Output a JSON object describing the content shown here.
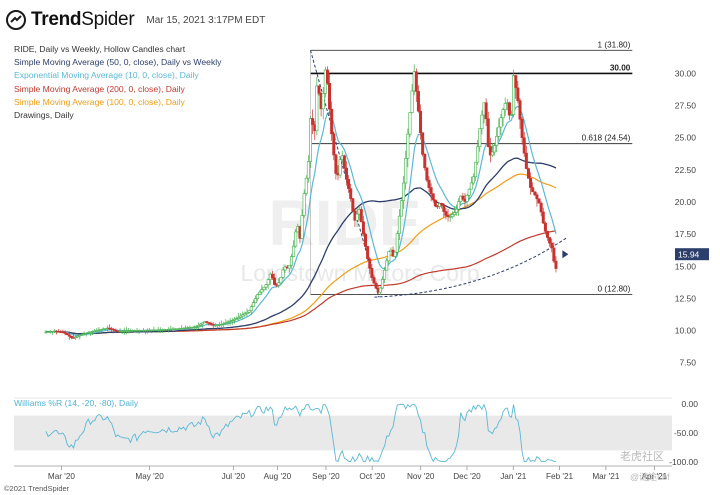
{
  "header": {
    "brand_bold": "Trend",
    "brand_light": "Spider",
    "timestamp": "Mar 15, 2021 3:17PM EDT"
  },
  "legend": {
    "title": "RIDE, Daily vs Weekly, Hollow Candles chart",
    "items": [
      {
        "label": "Simple Moving Average (50, 0, close), Daily vs Weekly",
        "color": "#2c3e6b"
      },
      {
        "label": "Exponential Moving Average (10, 0, close), Daily",
        "color": "#5bb8d4"
      },
      {
        "label": "Simple Moving Average (200, 0, close), Daily",
        "color": "#c0392b"
      },
      {
        "label": "Simple Moving Average (100, 0, close), Daily",
        "color": "#f39c12"
      },
      {
        "label": "Drawings, Daily",
        "color": "#333333"
      }
    ]
  },
  "watermark": {
    "symbol": "RIDE",
    "company": "Lordstown Motors Corp"
  },
  "footer": "©2021 TrendSpider",
  "corner_watermark": {
    "line1": "老虎社区",
    "line2": "@谜途Lbf"
  },
  "chart_data": {
    "type": "candlestick",
    "ticker": "RIDE",
    "price_axis": {
      "ticks": [
        7.5,
        10.0,
        12.5,
        15.0,
        17.5,
        20.0,
        22.5,
        25.0,
        27.5,
        30.0
      ],
      "range": [
        6.0,
        32.6
      ],
      "last_price": 15.94,
      "last_price_label": "15.94"
    },
    "x_axis": {
      "labels": [
        "Mar '20",
        "May '20",
        "Jul '20",
        "Aug '20",
        "Sep '20",
        "Oct '20",
        "Nov '20",
        "Dec '20",
        "Jan '21",
        "Feb '21",
        "Mar '21",
        "Apr '21"
      ]
    },
    "fibonacci": [
      {
        "label": "1 (31.80)",
        "price": 31.8
      },
      {
        "label": "30.00",
        "price": 30.0
      },
      {
        "label": "0.618 (24.54)",
        "price": 24.54
      },
      {
        "label": "0 (12.80)",
        "price": 12.8
      }
    ],
    "close_series": {
      "name": "RIDE close",
      "points": [
        [
          0,
          9.9
        ],
        [
          0.2,
          9.95
        ],
        [
          0.4,
          9.85
        ],
        [
          0.6,
          9.4
        ],
        [
          0.8,
          9.7
        ],
        [
          1.0,
          9.9
        ],
        [
          1.4,
          10.2
        ],
        [
          1.6,
          9.95
        ],
        [
          2.0,
          10.0
        ],
        [
          2.5,
          10.05
        ],
        [
          3.0,
          10.15
        ],
        [
          3.4,
          10.3
        ],
        [
          3.6,
          10.7
        ],
        [
          3.8,
          10.4
        ],
        [
          4.0,
          10.5
        ],
        [
          4.3,
          10.9
        ],
        [
          4.6,
          11.5
        ],
        [
          4.8,
          12.8
        ],
        [
          5.0,
          13.6
        ],
        [
          5.1,
          14.5
        ],
        [
          5.2,
          13.4
        ],
        [
          5.3,
          13.8
        ],
        [
          5.4,
          15.0
        ],
        [
          5.5,
          14.8
        ],
        [
          5.6,
          16.2
        ],
        [
          5.7,
          18.5
        ],
        [
          5.75,
          16.8
        ],
        [
          5.85,
          20.5
        ],
        [
          5.95,
          23.0
        ],
        [
          6.0,
          26.5
        ],
        [
          6.1,
          25.5
        ],
        [
          6.15,
          29.5
        ],
        [
          6.25,
          27.0
        ],
        [
          6.35,
          30.8
        ],
        [
          6.4,
          28.5
        ],
        [
          6.5,
          24.5
        ],
        [
          6.6,
          21.5
        ],
        [
          6.7,
          24.0
        ],
        [
          6.8,
          22.0
        ],
        [
          6.9,
          20.5
        ],
        [
          7.0,
          18.5
        ],
        [
          7.1,
          19.5
        ],
        [
          7.2,
          17.5
        ],
        [
          7.3,
          15.5
        ],
        [
          7.4,
          14.0
        ],
        [
          7.5,
          13.2
        ],
        [
          7.55,
          12.9
        ],
        [
          7.6,
          13.5
        ],
        [
          7.7,
          15.0
        ],
        [
          7.8,
          16.5
        ],
        [
          7.9,
          15.5
        ],
        [
          8.0,
          18.5
        ],
        [
          8.1,
          21.0
        ],
        [
          8.2,
          25.0
        ],
        [
          8.3,
          28.5
        ],
        [
          8.35,
          30.2
        ],
        [
          8.45,
          27.0
        ],
        [
          8.55,
          23.5
        ],
        [
          8.65,
          21.5
        ],
        [
          8.75,
          20.5
        ],
        [
          8.85,
          19.5
        ],
        [
          8.95,
          20.0
        ],
        [
          9.05,
          19.0
        ],
        [
          9.15,
          18.8
        ],
        [
          9.3,
          19.3
        ],
        [
          9.4,
          20.5
        ],
        [
          9.5,
          20.0
        ],
        [
          9.6,
          21.0
        ],
        [
          9.7,
          22.0
        ],
        [
          9.8,
          24.5
        ],
        [
          9.85,
          26.0
        ],
        [
          9.95,
          28.0
        ],
        [
          10.05,
          23.5
        ],
        [
          10.15,
          24.0
        ],
        [
          10.25,
          25.5
        ],
        [
          10.35,
          27.0
        ],
        [
          10.45,
          28.0
        ],
        [
          10.55,
          26.0
        ],
        [
          10.6,
          30.0
        ],
        [
          10.7,
          28.0
        ],
        [
          10.8,
          25.0
        ],
        [
          10.9,
          22.5
        ],
        [
          11.0,
          21.0
        ],
        [
          11.1,
          20.5
        ],
        [
          11.2,
          19.8
        ],
        [
          11.3,
          18.0
        ],
        [
          11.4,
          17.0
        ],
        [
          11.5,
          16.2
        ],
        [
          11.55,
          14.2
        ],
        [
          11.6,
          15.94
        ]
      ]
    },
    "williams_r": {
      "label": "Williams %R (14, -20, -80), Daily",
      "ticks": [
        0.0,
        -50.0,
        -100.0
      ],
      "tick_labels": [
        "0.00",
        "-50.00",
        "-100.00"
      ],
      "overbought": -20,
      "oversold": -80,
      "range": [
        -100,
        0
      ]
    }
  }
}
